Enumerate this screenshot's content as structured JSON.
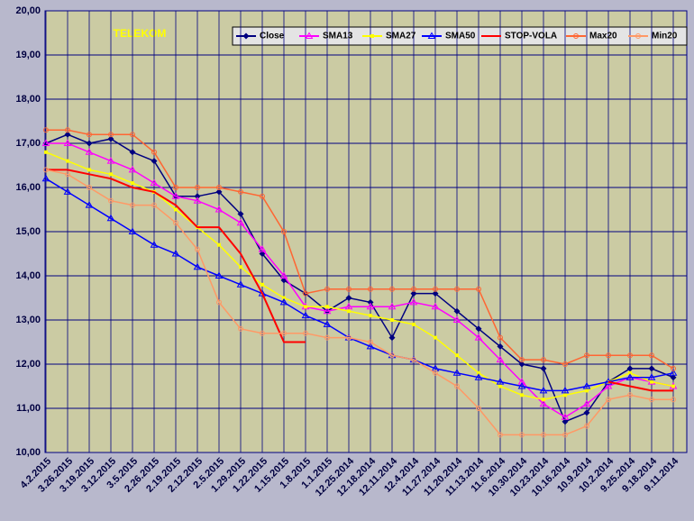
{
  "chart_data": {
    "type": "line",
    "title": "TELEKOM",
    "categories": [
      "4.2.2015",
      "3.26.2015",
      "3.19.2015",
      "3.12.2015",
      "3.5.2015",
      "2.26.2015",
      "2.19.2015",
      "2.12.2015",
      "2.5.2015",
      "1.29.2015",
      "1.22.2015",
      "1.15.2015",
      "1.8.2015",
      "1.1.2015",
      "12.25.2014",
      "12.18.2014",
      "12.11.2014",
      "12.4.2014",
      "11.27.2014",
      "11.20.2014",
      "11.13.2014",
      "11.6.2014",
      "10.30.2014",
      "10.23.2014",
      "10.16.2014",
      "10.9.2014",
      "10.2.2014",
      "9.25.2014",
      "9.18.2014",
      "9.11.2014"
    ],
    "series": [
      {
        "name": "Close",
        "color": "#000080",
        "marker": "diamond",
        "values": [
          17.0,
          17.2,
          17.0,
          17.1,
          16.8,
          16.6,
          15.8,
          15.8,
          15.9,
          15.4,
          14.5,
          13.9,
          13.6,
          13.2,
          13.5,
          13.4,
          12.6,
          13.6,
          13.6,
          13.2,
          12.8,
          12.4,
          12.0,
          11.9,
          10.7,
          10.9,
          11.6,
          11.9,
          11.9,
          11.7
        ]
      },
      {
        "name": "SMA13",
        "color": "#ff00ff",
        "marker": "triangle",
        "values": [
          17.0,
          17.0,
          16.8,
          16.6,
          16.4,
          16.1,
          15.8,
          15.7,
          15.5,
          15.2,
          14.6,
          14.0,
          13.3,
          13.2,
          13.3,
          13.3,
          13.3,
          13.4,
          13.3,
          13.0,
          12.6,
          12.1,
          11.6,
          11.1,
          10.8,
          11.1,
          11.5,
          11.7,
          11.6,
          11.5
        ]
      },
      {
        "name": "SMA27",
        "color": "#ffff00",
        "marker": "square",
        "values": [
          16.8,
          16.6,
          16.4,
          16.3,
          16.1,
          15.9,
          15.5,
          15.1,
          14.7,
          14.2,
          13.8,
          13.5,
          13.3,
          13.3,
          13.2,
          13.1,
          13.0,
          12.9,
          12.6,
          12.2,
          11.8,
          11.5,
          11.3,
          11.2,
          11.3,
          11.4,
          11.6,
          11.8,
          11.6,
          11.5
        ]
      },
      {
        "name": "SMA50",
        "color": "#0000ff",
        "marker": "triangle",
        "values": [
          16.2,
          15.9,
          15.6,
          15.3,
          15.0,
          14.7,
          14.5,
          14.2,
          14.0,
          13.8,
          13.6,
          13.4,
          13.1,
          12.9,
          12.6,
          12.4,
          12.2,
          12.1,
          11.9,
          11.8,
          11.7,
          11.6,
          11.5,
          11.4,
          11.4,
          11.5,
          11.6,
          11.7,
          11.7,
          11.8
        ]
      },
      {
        "name": "STOP-VOLA",
        "color": "#ff0000",
        "marker": "none",
        "values": [
          16.4,
          16.4,
          16.3,
          16.2,
          16.0,
          15.9,
          15.6,
          15.1,
          15.1,
          14.5,
          13.6,
          12.5,
          12.5,
          null,
          null,
          null,
          null,
          null,
          null,
          null,
          null,
          null,
          null,
          null,
          null,
          null,
          11.6,
          11.5,
          11.4,
          11.4
        ]
      },
      {
        "name": "Max20",
        "color": "#ff6633",
        "marker": "circle",
        "values": [
          17.3,
          17.3,
          17.2,
          17.2,
          17.2,
          16.8,
          16.0,
          16.0,
          16.0,
          15.9,
          15.8,
          15.0,
          13.6,
          13.7,
          13.7,
          13.7,
          13.7,
          13.7,
          13.7,
          13.7,
          13.7,
          12.6,
          12.1,
          12.1,
          12.0,
          12.2,
          12.2,
          12.2,
          12.2,
          11.9
        ]
      },
      {
        "name": "Min20",
        "color": "#ff9966",
        "marker": "circle",
        "values": [
          16.4,
          16.3,
          16.0,
          15.7,
          15.6,
          15.6,
          15.2,
          14.6,
          13.4,
          12.8,
          12.7,
          12.7,
          12.7,
          12.6,
          12.6,
          12.5,
          12.2,
          12.1,
          11.8,
          11.5,
          11.0,
          10.4,
          10.4,
          10.4,
          10.4,
          10.6,
          11.2,
          11.3,
          11.2,
          11.2
        ]
      }
    ],
    "ylim": [
      10,
      20
    ],
    "yticks": [
      {
        "value": 10,
        "label": "10,00"
      },
      {
        "value": 11,
        "label": "11,00"
      },
      {
        "value": 12,
        "label": "12,00"
      },
      {
        "value": 13,
        "label": "13,00"
      },
      {
        "value": 14,
        "label": "14,00"
      },
      {
        "value": 15,
        "label": "15,00"
      },
      {
        "value": 16,
        "label": "16,00"
      },
      {
        "value": 17,
        "label": "17,00"
      },
      {
        "value": 18,
        "label": "18,00"
      },
      {
        "value": 19,
        "label": "19,00"
      },
      {
        "value": 20,
        "label": "20,00"
      }
    ],
    "grid": true,
    "legend": "top"
  }
}
